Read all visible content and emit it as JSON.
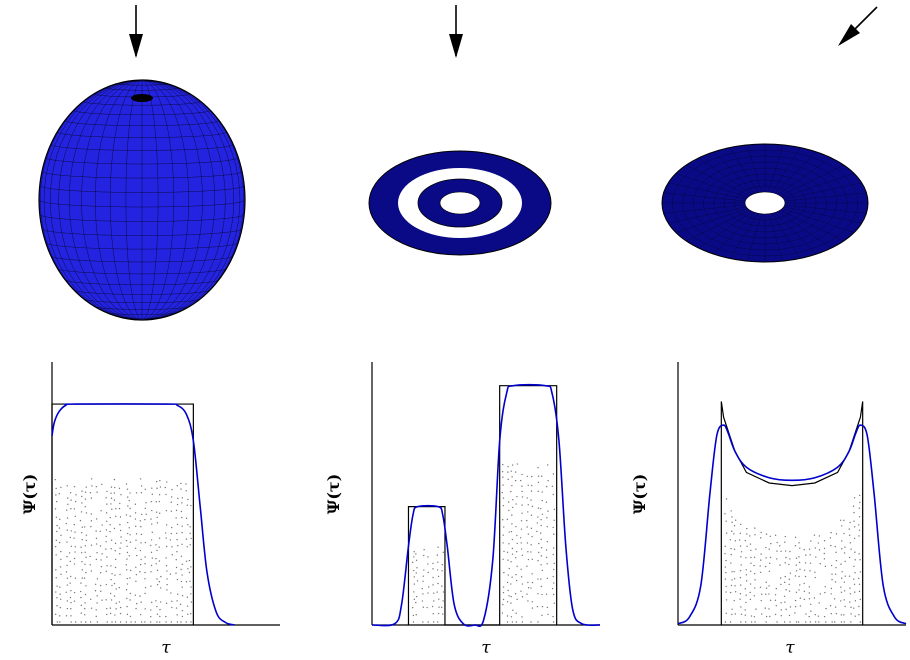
{
  "colors": {
    "surface": "#2323e0",
    "disk": "#0a0a86",
    "mesh": "#000000",
    "curve": "#0000cc",
    "frame": "#000000",
    "dots": "#777777"
  },
  "icons": [
    "arrow-down-icon",
    "arrow-down-icon",
    "arrow-diagonal-icon"
  ],
  "panels": [
    {
      "shape": "spheroid",
      "arrow": "vertical",
      "y_label": "Ψ(τ)",
      "x_label": "τ"
    },
    {
      "shape": "disk-with-ring-gap",
      "arrow": "vertical",
      "y_label": "Ψ(τ)",
      "x_label": "τ"
    },
    {
      "shape": "disk-with-hole",
      "arrow": "oblique",
      "y_label": "Ψ(τ)",
      "x_label": "τ"
    }
  ],
  "chart_data": [
    {
      "type": "line",
      "title": "",
      "xlabel": "τ",
      "ylabel": "Ψ(τ)",
      "xlim": [
        0,
        1
      ],
      "ylim": [
        0,
        1
      ],
      "series": [
        {
          "style": "black-step",
          "x": [
            0.0,
            0.0,
            0.62,
            0.62
          ],
          "y": [
            0,
            0.84,
            0.84,
            0
          ]
        },
        {
          "style": "blue-smooth",
          "x": [
            0.0,
            0.01,
            0.03,
            0.06,
            0.1,
            0.5,
            0.55,
            0.59,
            0.62,
            0.65,
            0.68,
            0.72,
            0.76,
            0.8
          ],
          "y": [
            0.72,
            0.77,
            0.81,
            0.835,
            0.84,
            0.84,
            0.835,
            0.8,
            0.7,
            0.45,
            0.2,
            0.05,
            0.01,
            0
          ]
        }
      ]
    },
    {
      "type": "line",
      "title": "",
      "xlabel": "τ",
      "ylabel": "Ψ(τ)",
      "xlim": [
        0,
        1
      ],
      "ylim": [
        0,
        1
      ],
      "series": [
        {
          "style": "black-step",
          "x": [
            0.16,
            0.16,
            0.32,
            0.32,
            0.56,
            0.56,
            0.81,
            0.81
          ],
          "y": [
            0,
            0.45,
            0.45,
            0,
            0,
            0.91,
            0.91,
            0
          ]
        },
        {
          "style": "blue-smooth",
          "x": [
            0.0,
            0.1,
            0.13,
            0.16,
            0.18,
            0.2,
            0.29,
            0.31,
            0.33,
            0.36,
            0.4,
            0.45,
            0.49,
            0.53,
            0.56,
            0.59,
            0.62,
            0.76,
            0.79,
            0.82,
            0.85,
            0.88,
            0.92,
            1.0
          ],
          "y": [
            0,
            0.005,
            0.08,
            0.3,
            0.42,
            0.45,
            0.45,
            0.42,
            0.3,
            0.08,
            0.005,
            0,
            0.02,
            0.25,
            0.7,
            0.88,
            0.91,
            0.91,
            0.88,
            0.7,
            0.3,
            0.06,
            0.005,
            0
          ]
        }
      ]
    },
    {
      "type": "line",
      "title": "",
      "xlabel": "τ",
      "ylabel": "Ψ(τ)",
      "xlim": [
        0,
        1
      ],
      "ylim": [
        0,
        1
      ],
      "series": [
        {
          "style": "black-step",
          "x": [
            0.19,
            0.19,
            0.2,
            0.25,
            0.3,
            0.4,
            0.5,
            0.6,
            0.7,
            0.75,
            0.8,
            0.81,
            0.81
          ],
          "y": [
            0,
            0.85,
            0.79,
            0.66,
            0.58,
            0.54,
            0.53,
            0.54,
            0.58,
            0.66,
            0.79,
            0.85,
            0
          ]
        },
        {
          "style": "blue-smooth",
          "x": [
            0.0,
            0.05,
            0.1,
            0.14,
            0.17,
            0.2,
            0.22,
            0.25,
            0.3,
            0.4,
            0.5,
            0.6,
            0.7,
            0.75,
            0.78,
            0.8,
            0.83,
            0.86,
            0.9,
            0.95,
            1.0
          ],
          "y": [
            0.005,
            0.03,
            0.15,
            0.5,
            0.72,
            0.76,
            0.73,
            0.66,
            0.6,
            0.56,
            0.55,
            0.56,
            0.6,
            0.66,
            0.73,
            0.76,
            0.72,
            0.5,
            0.15,
            0.03,
            0.005
          ]
        }
      ]
    }
  ]
}
